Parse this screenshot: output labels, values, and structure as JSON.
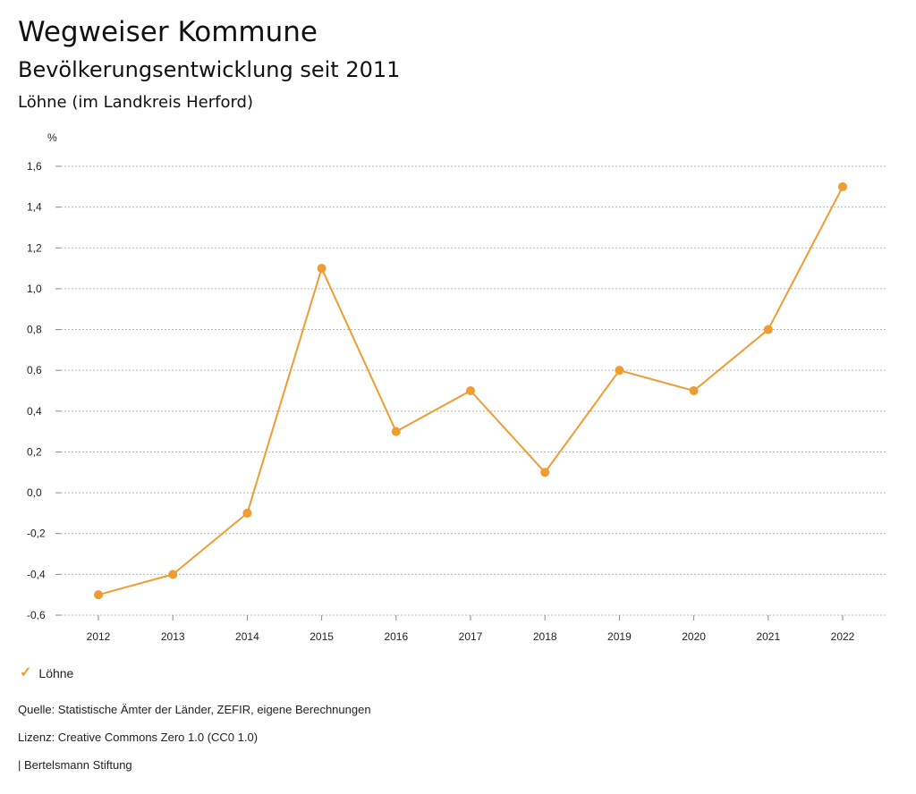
{
  "header": {
    "title": "Wegweiser Kommune",
    "subtitle": "Bevölkerungsentwicklung seit 2011",
    "region": "Löhne (im Landkreis Herford)"
  },
  "chart_data": {
    "type": "line",
    "ylabel": "%",
    "xlabel": "",
    "categories": [
      "2012",
      "2013",
      "2014",
      "2015",
      "2016",
      "2017",
      "2018",
      "2019",
      "2020",
      "2021",
      "2022"
    ],
    "series": [
      {
        "name": "Löhne",
        "color": "#ef9c32",
        "values": [
          -0.5,
          -0.4,
          -0.1,
          1.1,
          0.3,
          0.5,
          0.1,
          0.6,
          0.5,
          0.8,
          1.5
        ]
      }
    ],
    "ylim": [
      -0.6,
      1.6
    ],
    "yticks": [
      1.6,
      1.4,
      1.2,
      1.0,
      0.8,
      0.6,
      0.4,
      0.2,
      0.0,
      -0.2,
      -0.4,
      -0.6
    ],
    "ytick_labels": [
      "1,6",
      "1,4",
      "1,2",
      "1,0",
      "0,8",
      "0,6",
      "0,4",
      "0,2",
      "0,0",
      "-0,2",
      "-0,4",
      "-0,6"
    ],
    "grid": true,
    "legend_position": "bottom-left"
  },
  "legend": {
    "label": "Löhne",
    "icon": "check-icon"
  },
  "footer": {
    "source": "Quelle: Statistische Ämter der Länder, ZEFIR, eigene Berechnungen",
    "license": "Lizenz: Creative Commons Zero 1.0 (CC0 1.0)",
    "publisher": "| Bertelsmann Stiftung"
  }
}
